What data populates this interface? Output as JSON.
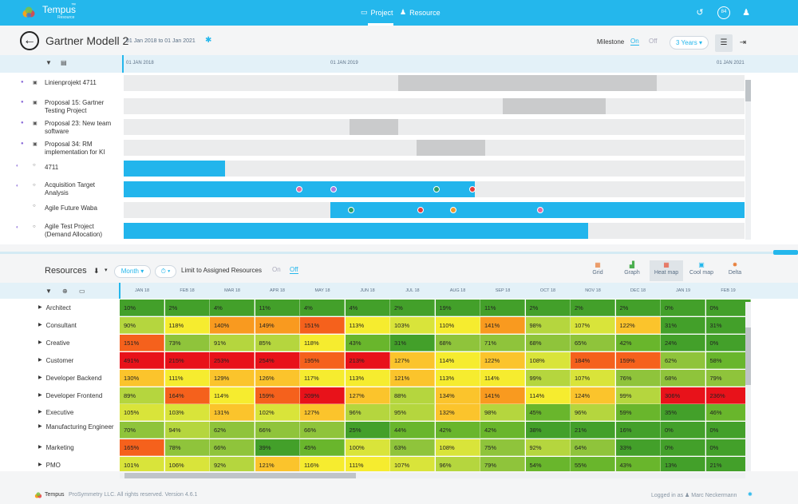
{
  "app": {
    "brand": "Tempus",
    "brand_tm": "™",
    "brand_sub": "Resource",
    "nav": {
      "project": "Project",
      "resource": "Resource"
    },
    "avatar_initials": "84",
    "brand_color": "#24b7ec"
  },
  "header": {
    "title": "Gartner Modell 2",
    "date_range": "01 Jan 2018 to 01 Jan 2021",
    "milestone_label": "Milestone",
    "milestone_on": "On",
    "milestone_off": "Off",
    "years": "3 Years ▾"
  },
  "gantt": {
    "timeline": [
      "01 JAN 2018",
      "01 JAN 2019",
      "01 JAN 2021"
    ],
    "rows": [
      {
        "label": "Linienprojekt 4711",
        "kind": "proposal"
      },
      {
        "label": "Proposal 15: Gartner Testing Project",
        "kind": "proposal"
      },
      {
        "label": "Proposal 23: New team software",
        "kind": "proposal"
      },
      {
        "label": "Proposal 34: RM implementation for KI",
        "kind": "proposal"
      },
      {
        "label": "4711",
        "kind": "project"
      },
      {
        "label": "Acquisition Target Analysis",
        "kind": "project"
      },
      {
        "label": "Agile Future Waba",
        "kind": "project"
      },
      {
        "label": "Agile Test Project (Demand Allocation)",
        "kind": "project"
      }
    ]
  },
  "resources": {
    "title": "Resources",
    "period_select": "Month ▾",
    "unit_select": "⏱ ▾",
    "limit_label": "Limit to Assigned Resources",
    "limit_on": "On",
    "limit_off": "Off",
    "modes": {
      "grid": "Grid",
      "graph": "Graph",
      "heat": "Heat map",
      "cool": "Cool map",
      "delta": "Delta"
    },
    "months": [
      "JAN 18",
      "FEB 18",
      "MAR 18",
      "APR 18",
      "MAY 18",
      "JUN 18",
      "JUL 18",
      "AUG 18",
      "SEP 18",
      "OCT 18",
      "NOV 18",
      "DEC 18",
      "JAN 19",
      "FEB 19"
    ],
    "rows": [
      {
        "name": "Architect",
        "values": [
          "10%",
          "2%",
          "4%",
          "11%",
          "4%",
          "4%",
          "2%",
          "19%",
          "11%",
          "2%",
          "2%",
          "2%",
          "0%",
          "0%"
        ]
      },
      {
        "name": "Consultant",
        "values": [
          "90%",
          "118%",
          "140%",
          "149%",
          "151%",
          "113%",
          "103%",
          "110%",
          "141%",
          "98%",
          "107%",
          "122%",
          "31%",
          "31%"
        ]
      },
      {
        "name": "Creative",
        "values": [
          "151%",
          "73%",
          "91%",
          "85%",
          "118%",
          "43%",
          "31%",
          "68%",
          "71%",
          "68%",
          "65%",
          "42%",
          "24%",
          "0%"
        ]
      },
      {
        "name": "Customer",
        "values": [
          "491%",
          "215%",
          "253%",
          "254%",
          "195%",
          "213%",
          "127%",
          "114%",
          "122%",
          "108%",
          "184%",
          "159%",
          "62%",
          "58%"
        ]
      },
      {
        "name": "Developer Backend",
        "values": [
          "130%",
          "111%",
          "129%",
          "126%",
          "117%",
          "113%",
          "121%",
          "113%",
          "114%",
          "99%",
          "107%",
          "76%",
          "68%",
          "79%"
        ]
      },
      {
        "name": "Developer Frontend",
        "values": [
          "89%",
          "164%",
          "114%",
          "159%",
          "209%",
          "127%",
          "88%",
          "134%",
          "141%",
          "114%",
          "124%",
          "99%",
          "306%",
          "236%"
        ]
      },
      {
        "name": "Executive",
        "values": [
          "105%",
          "103%",
          "131%",
          "102%",
          "127%",
          "96%",
          "95%",
          "132%",
          "98%",
          "45%",
          "96%",
          "59%",
          "35%",
          "46%"
        ]
      },
      {
        "name": "Manufacturing Engineer",
        "values": [
          "70%",
          "94%",
          "62%",
          "66%",
          "66%",
          "25%",
          "44%",
          "42%",
          "42%",
          "38%",
          "21%",
          "16%",
          "0%",
          "0%"
        ]
      },
      {
        "name": "Marketing",
        "values": [
          "165%",
          "78%",
          "66%",
          "39%",
          "45%",
          "100%",
          "63%",
          "108%",
          "75%",
          "92%",
          "64%",
          "33%",
          "0%",
          "0%"
        ]
      },
      {
        "name": "PMO",
        "values": [
          "101%",
          "106%",
          "92%",
          "121%",
          "116%",
          "111%",
          "107%",
          "96%",
          "79%",
          "54%",
          "55%",
          "43%",
          "13%",
          "21%"
        ]
      }
    ]
  },
  "footer": {
    "brand": "Tempus",
    "copyright": "ProSymmetry LLC. All rights reserved. Version 4.6.1",
    "logged_in": "Logged in as  ♟ Marc Neckermann"
  }
}
